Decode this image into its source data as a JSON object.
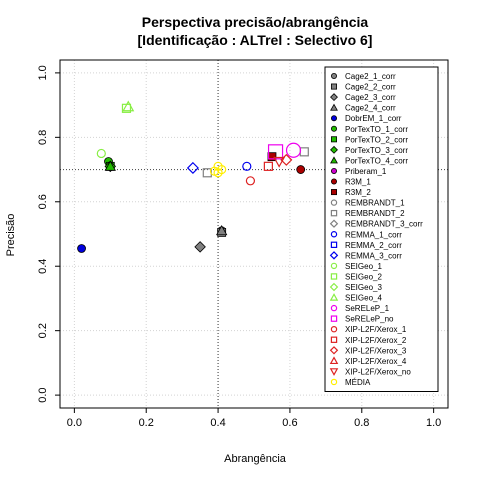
{
  "chart_data": {
    "type": "scatter",
    "title": "Perspectiva precisão/abrangência",
    "subtitle": "[Identificação : ALTrel : Selectivo 6]",
    "xlabel": "Abrangência",
    "ylabel": "Precisão",
    "xlim": [
      0,
      1
    ],
    "ylim": [
      0,
      1
    ],
    "xticks": [
      "0.0",
      "0.2",
      "0.4",
      "0.6",
      "0.8",
      "1.0"
    ],
    "yticks": [
      "0.0",
      "0.2",
      "0.4",
      "0.6",
      "0.8",
      "1.0"
    ],
    "grid": true,
    "reference_lines": {
      "x": 0.4,
      "y": 0.7
    },
    "legend_position": "right",
    "series": [
      {
        "name": "Cage2_1_corr",
        "color": "#808080",
        "marker": "circle-filled",
        "points": [
          [
            0.41,
            0.51
          ]
        ]
      },
      {
        "name": "Cage2_2_corr",
        "color": "#808080",
        "marker": "square-filled",
        "points": [
          [
            0.41,
            0.505
          ]
        ]
      },
      {
        "name": "Cage2_3_corr",
        "color": "#808080",
        "marker": "diamond-filled",
        "points": [
          [
            0.35,
            0.46
          ]
        ]
      },
      {
        "name": "Cage2_4_corr",
        "color": "#808080",
        "marker": "triangle-filled",
        "points": [
          [
            0.41,
            0.51
          ]
        ]
      },
      {
        "name": "DobrEM_1_corr",
        "color": "#0000dd",
        "marker": "circle-filled",
        "points": [
          [
            0.02,
            0.455
          ]
        ]
      },
      {
        "name": "PorTexTO_1_corr",
        "color": "#22bb00",
        "marker": "circle-filled",
        "points": [
          [
            0.095,
            0.725
          ]
        ]
      },
      {
        "name": "PorTexTO_2_corr",
        "color": "#22bb00",
        "marker": "square-filled",
        "points": [
          [
            0.1,
            0.71
          ]
        ]
      },
      {
        "name": "PorTexTO_3_corr",
        "color": "#22bb00",
        "marker": "diamond-filled",
        "points": [
          [
            0.1,
            0.71
          ]
        ]
      },
      {
        "name": "PorTexTO_4_corr",
        "color": "#22bb00",
        "marker": "triangle-filled",
        "points": [
          [
            0.1,
            0.71
          ]
        ]
      },
      {
        "name": "Priberam_1",
        "color": "#cc00cc",
        "marker": "circle-filled",
        "points": []
      },
      {
        "name": "R3M_1",
        "color": "#aa0000",
        "marker": "circle-filled",
        "points": [
          [
            0.63,
            0.7
          ]
        ]
      },
      {
        "name": "R3M_2",
        "color": "#aa0000",
        "marker": "square-filled",
        "points": [
          [
            0.55,
            0.74
          ]
        ]
      },
      {
        "name": "REMBRANDT_1",
        "color": "#808080",
        "marker": "circle-open",
        "points": []
      },
      {
        "name": "REMBRANDT_2",
        "color": "#808080",
        "marker": "square-open",
        "points": [
          [
            0.64,
            0.755
          ],
          [
            0.37,
            0.69
          ]
        ]
      },
      {
        "name": "REMBRANDT_3_corr",
        "color": "#808080",
        "marker": "diamond-open",
        "points": []
      },
      {
        "name": "REMMA_1_corr",
        "color": "#0000ee",
        "marker": "circle-open",
        "points": [
          [
            0.48,
            0.71
          ]
        ]
      },
      {
        "name": "REMMA_2_corr",
        "color": "#0000ee",
        "marker": "square-open",
        "points": []
      },
      {
        "name": "REMMA_3_corr",
        "color": "#0000ee",
        "marker": "diamond-open",
        "points": [
          [
            0.33,
            0.705
          ]
        ]
      },
      {
        "name": "SEIGeo_1",
        "color": "#88ee44",
        "marker": "circle-open",
        "points": [
          [
            0.075,
            0.75
          ]
        ]
      },
      {
        "name": "SEIGeo_2",
        "color": "#88ee44",
        "marker": "square-open",
        "points": [
          [
            0.145,
            0.89
          ]
        ]
      },
      {
        "name": "SEIGeo_3",
        "color": "#88ee44",
        "marker": "diamond-open",
        "points": []
      },
      {
        "name": "SEIGeo_4",
        "color": "#88ee44",
        "marker": "triangle-open",
        "points": [
          [
            0.15,
            0.895
          ]
        ]
      },
      {
        "name": "SeRELeP_1",
        "color": "#ee00ee",
        "marker": "circle-open",
        "points": [
          [
            0.61,
            0.76
          ]
        ]
      },
      {
        "name": "SeRELeP_no",
        "color": "#ee00ee",
        "marker": "square-open",
        "points": [
          [
            0.56,
            0.755
          ]
        ]
      },
      {
        "name": "XIP-L2F/Xerox_1",
        "color": "#dd2222",
        "marker": "circle-open",
        "points": [
          [
            0.49,
            0.665
          ]
        ]
      },
      {
        "name": "XIP-L2F/Xerox_2",
        "color": "#dd2222",
        "marker": "square-open",
        "points": [
          [
            0.54,
            0.71
          ]
        ]
      },
      {
        "name": "XIP-L2F/Xerox_3",
        "color": "#dd2222",
        "marker": "diamond-open",
        "points": [
          [
            0.59,
            0.73
          ]
        ]
      },
      {
        "name": "XIP-L2F/Xerox_4",
        "color": "#dd2222",
        "marker": "triangle-open",
        "points": []
      },
      {
        "name": "XIP-L2F/Xerox_no",
        "color": "#dd2222",
        "marker": "triangle-down-open",
        "points": [
          [
            0.57,
            0.725
          ]
        ]
      },
      {
        "name": "MÉDIA",
        "color": "#ffee00",
        "marker": "circle-open",
        "points": [
          [
            0.4,
            0.71
          ],
          [
            0.39,
            0.695
          ],
          [
            0.41,
            0.7
          ],
          [
            0.4,
            0.69
          ]
        ]
      }
    ]
  }
}
